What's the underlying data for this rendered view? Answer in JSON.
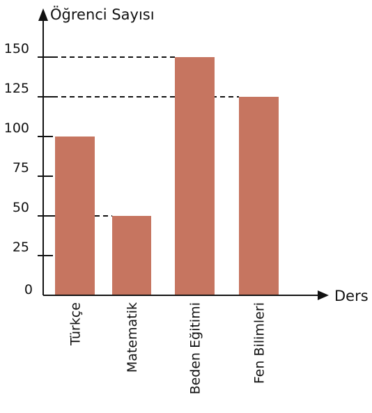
{
  "chart_data": {
    "type": "bar",
    "ylabel": "Öğrenci  Sayısı",
    "xlabel": "Ders",
    "categories": [
      "Türkçe",
      "Matematik",
      "Beden  Eğitimi",
      "Fen  Bilimleri"
    ],
    "values": [
      100,
      50,
      150,
      125
    ],
    "yticks": [
      0,
      25,
      50,
      75,
      100,
      125,
      150
    ],
    "ylim": [
      0,
      175
    ],
    "reference_lines": [
      150,
      125,
      50
    ],
    "grid": false,
    "bar_color": "#C67560"
  }
}
